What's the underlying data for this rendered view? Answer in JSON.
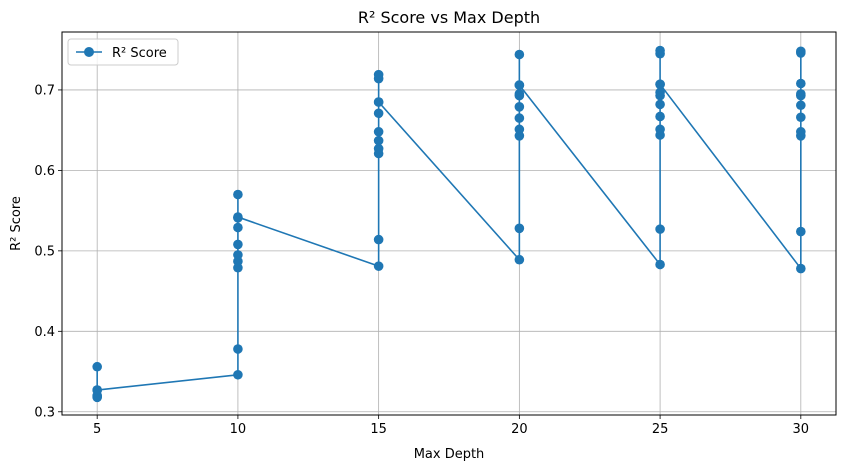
{
  "chart_data": {
    "type": "line",
    "title": "R² Score vs Max Depth",
    "xlabel": "Max Depth",
    "ylabel": "R² Score",
    "xlim": [
      3.75,
      31.25
    ],
    "ylim": [
      0.296,
      0.772
    ],
    "xticks": [
      5,
      10,
      15,
      20,
      25,
      30
    ],
    "yticks": [
      0.3,
      0.4,
      0.5,
      0.6,
      0.7
    ],
    "ytick_labels": [
      "0.3",
      "0.4",
      "0.5",
      "0.6",
      "0.7"
    ],
    "grid": true,
    "legend_position": "top-left",
    "series": [
      {
        "name": "R² Score",
        "color": "#1f77b4",
        "marker": "circle",
        "points": [
          [
            5,
            0.327
          ],
          [
            5,
            0.318
          ],
          [
            5,
            0.32
          ],
          [
            5,
            0.319
          ],
          [
            5,
            0.356
          ],
          [
            5,
            0.327
          ],
          [
            10,
            0.346
          ],
          [
            10,
            0.378
          ],
          [
            10,
            0.479
          ],
          [
            10,
            0.487
          ],
          [
            10,
            0.495
          ],
          [
            10,
            0.508
          ],
          [
            10,
            0.529
          ],
          [
            10,
            0.541
          ],
          [
            10,
            0.57
          ],
          [
            10,
            0.542
          ],
          [
            15,
            0.481
          ],
          [
            15,
            0.514
          ],
          [
            15,
            0.621
          ],
          [
            15,
            0.627
          ],
          [
            15,
            0.637
          ],
          [
            15,
            0.648
          ],
          [
            15,
            0.671
          ],
          [
            15,
            0.685
          ],
          [
            15,
            0.714
          ],
          [
            15,
            0.719
          ],
          [
            15,
            0.685
          ],
          [
            20,
            0.489
          ],
          [
            20,
            0.528
          ],
          [
            20,
            0.643
          ],
          [
            20,
            0.651
          ],
          [
            20,
            0.665
          ],
          [
            20,
            0.679
          ],
          [
            20,
            0.693
          ],
          [
            20,
            0.695
          ],
          [
            20,
            0.706
          ],
          [
            20,
            0.744
          ],
          [
            20,
            0.706
          ],
          [
            25,
            0.483
          ],
          [
            25,
            0.527
          ],
          [
            25,
            0.644
          ],
          [
            25,
            0.651
          ],
          [
            25,
            0.667
          ],
          [
            25,
            0.682
          ],
          [
            25,
            0.693
          ],
          [
            25,
            0.697
          ],
          [
            25,
            0.707
          ],
          [
            25,
            0.745
          ],
          [
            25,
            0.749
          ],
          [
            25,
            0.707
          ],
          [
            30,
            0.478
          ],
          [
            30,
            0.524
          ],
          [
            30,
            0.643
          ],
          [
            30,
            0.648
          ],
          [
            30,
            0.666
          ],
          [
            30,
            0.681
          ],
          [
            30,
            0.693
          ],
          [
            30,
            0.695
          ],
          [
            30,
            0.708
          ],
          [
            30,
            0.746
          ],
          [
            30,
            0.748
          ]
        ]
      }
    ]
  }
}
